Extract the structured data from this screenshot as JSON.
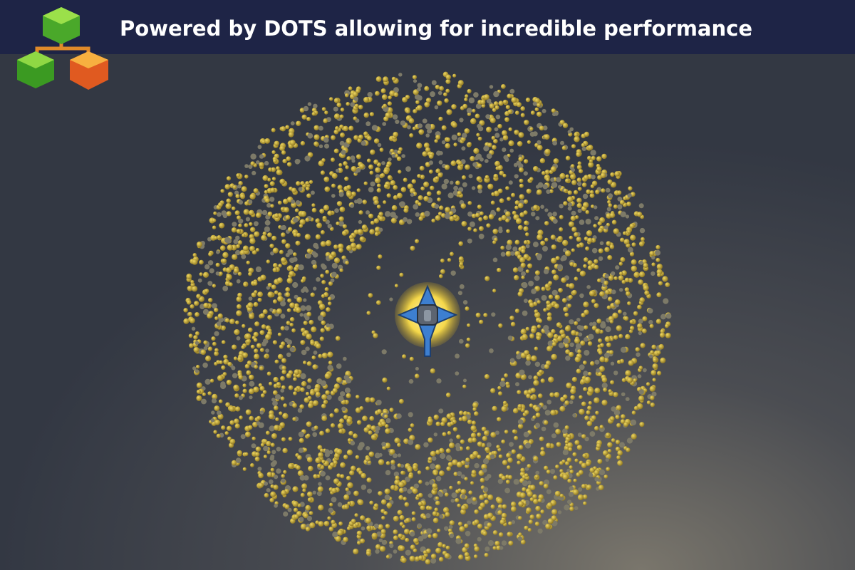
{
  "header": {
    "title": "Powered by DOTS allowing for incredible performance"
  }
}
